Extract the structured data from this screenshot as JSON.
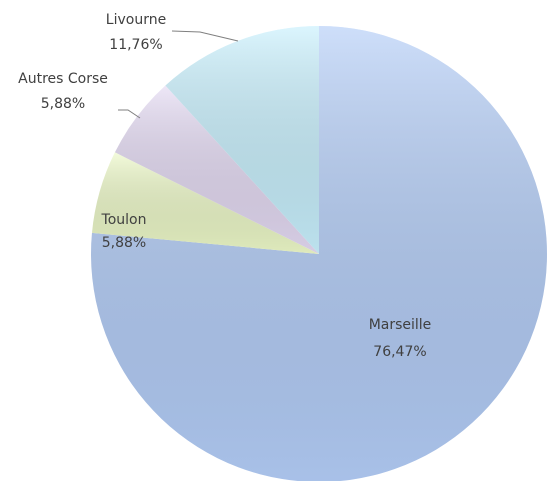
{
  "chart_data": {
    "type": "pie",
    "categories": [
      "Marseille",
      "Toulon",
      "Autres Corse",
      "Livourne"
    ],
    "values": [
      76.47,
      5.88,
      5.88,
      11.76
    ],
    "value_labels": [
      "76,47%",
      "5,88%",
      "5,88%",
      "11,76%"
    ],
    "colors": [
      "#b3cdf7",
      "#edf9c8",
      "#e4daf3",
      "#c8f0fd"
    ]
  }
}
